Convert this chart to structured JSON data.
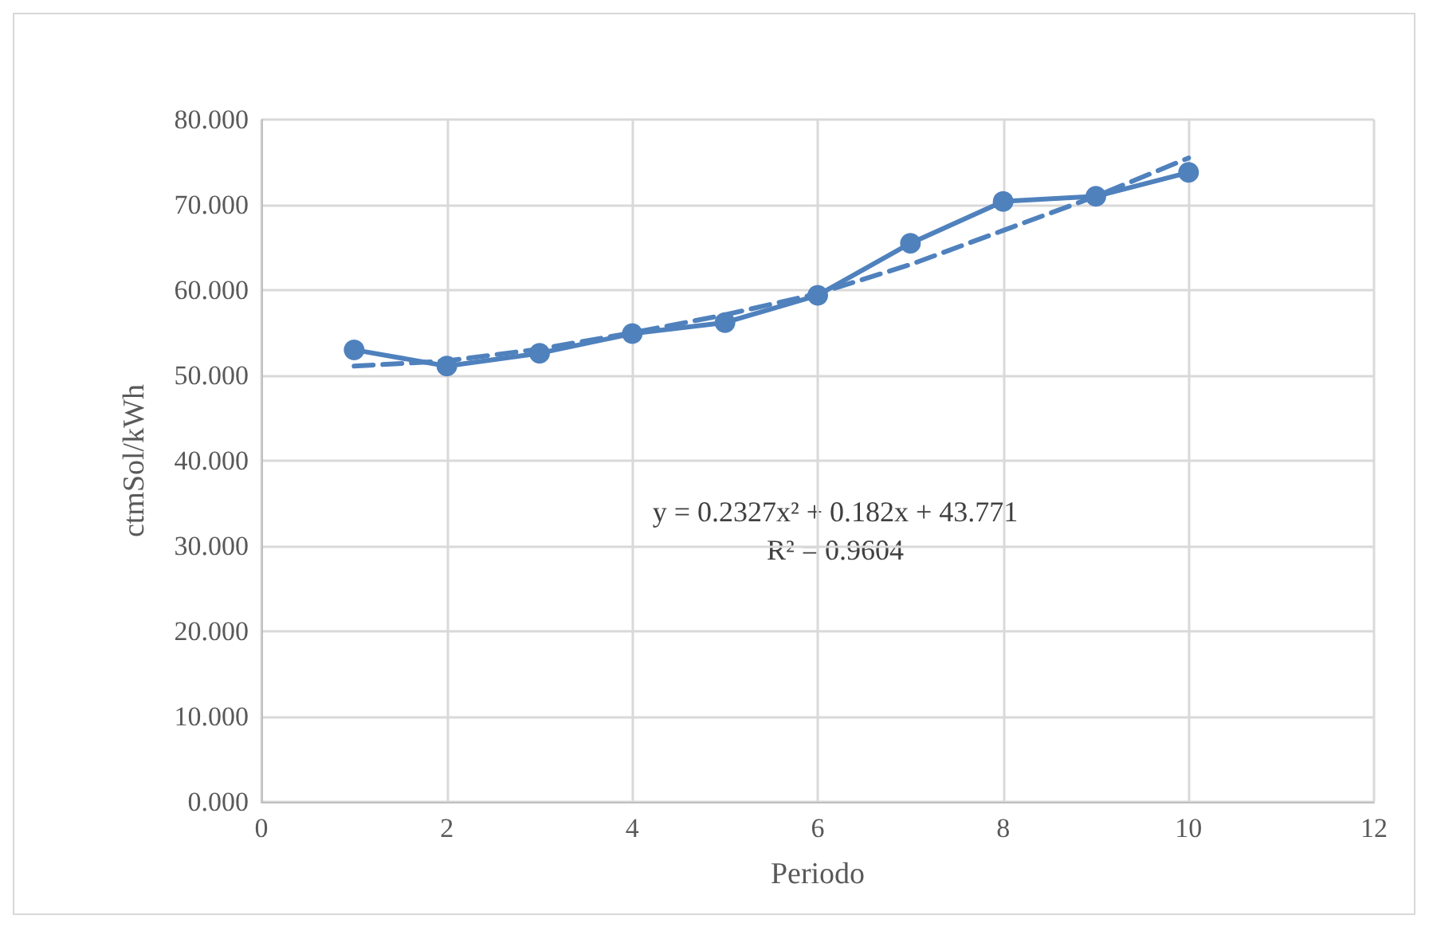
{
  "chart_data": {
    "type": "line",
    "xlabel": "Periodo",
    "ylabel": "ctmSol/kWh",
    "x": [
      1,
      2,
      3,
      4,
      5,
      6,
      7,
      8,
      9,
      10
    ],
    "series": [
      {
        "color": "#4f81bd",
        "marker": "circle",
        "line_style": "solid",
        "values": [
          53.0,
          51.1,
          52.6,
          54.9,
          56.2,
          59.4,
          65.5,
          70.4,
          71.0,
          73.8
        ]
      },
      {
        "color": "#4f81bd",
        "marker": "none",
        "line_style": "dashed",
        "values": [
          51.1,
          51.7,
          53.1,
          55.0,
          57.1,
          59.6,
          63.0,
          67.0,
          71.0,
          75.5
        ]
      }
    ],
    "annotations": [
      "y = 0.2327x² + 0.182x + 43.771",
      "R² = 0.9604"
    ],
    "xlim": [
      0,
      12
    ],
    "xticks": [
      0,
      2,
      4,
      6,
      8,
      10,
      12
    ],
    "ylim": [
      0,
      80
    ],
    "yticks": [
      {
        "value": 0,
        "label": "0.000"
      },
      {
        "value": 10,
        "label": "10.000"
      },
      {
        "value": 20,
        "label": "20.000"
      },
      {
        "value": 30,
        "label": "30.000"
      },
      {
        "value": 40,
        "label": "40.000"
      },
      {
        "value": 50,
        "label": "50.000"
      },
      {
        "value": 60,
        "label": "60.000"
      },
      {
        "value": 70,
        "label": "70.000"
      },
      {
        "value": 80,
        "label": "80.000"
      }
    ],
    "grid": true
  }
}
